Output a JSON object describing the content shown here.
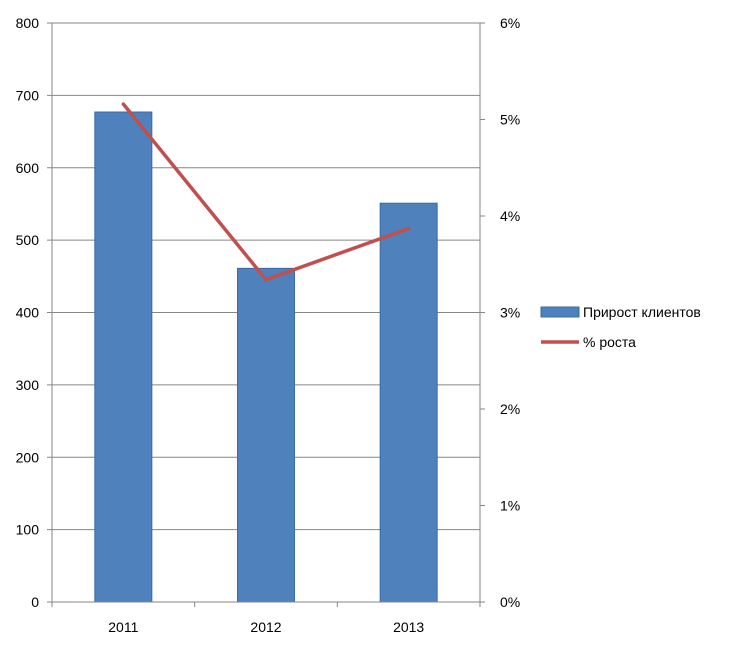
{
  "chart_data": {
    "type": "bar",
    "categories": [
      "2011",
      "2012",
      "2013"
    ],
    "series": [
      {
        "name": "Прирост клиентов",
        "type": "bar",
        "axis": "left",
        "values": [
          677,
          461,
          551
        ],
        "color": "#4F81BD"
      },
      {
        "name": "% роста",
        "type": "line",
        "axis": "right",
        "values": [
          0.0516,
          0.0334,
          0.0387
        ],
        "color": "#C0504D"
      }
    ],
    "y_left": {
      "min": 0,
      "max": 800,
      "ticks": [
        "0",
        "100",
        "200",
        "300",
        "400",
        "500",
        "600",
        "700",
        "800"
      ]
    },
    "y_right": {
      "min": 0,
      "max": 0.06,
      "ticks": [
        "0%",
        "1%",
        "2%",
        "3%",
        "4%",
        "5%",
        "6%"
      ]
    },
    "grid": true,
    "legend_position": "right",
    "title": "",
    "xlabel": "",
    "ylabel": ""
  }
}
